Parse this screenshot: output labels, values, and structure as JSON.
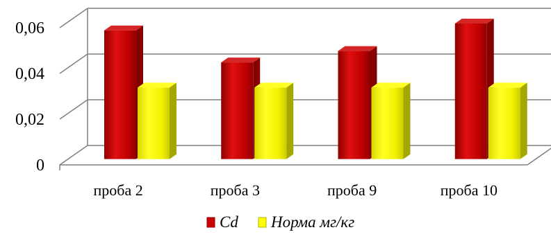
{
  "chart_data": {
    "type": "bar",
    "style": "3d-clustered",
    "categories": [
      "проба 2",
      "проба 3",
      "проба 9",
      "проба 10"
    ],
    "series": [
      {
        "name": "Cd",
        "values": [
          0.055,
          0.041,
          0.046,
          0.058
        ],
        "color": "#cc0000"
      },
      {
        "name": "Норма мг/кг",
        "values": [
          0.03,
          0.03,
          0.03,
          0.03
        ],
        "color": "#ffff00"
      }
    ],
    "y_ticks": [
      0,
      0.02,
      0.04,
      0.06
    ],
    "y_tick_labels": [
      "0",
      "0,02",
      "0,04",
      "0,06"
    ],
    "ylim": [
      0,
      0.06
    ],
    "grid": true,
    "legend_position": "bottom",
    "title": "",
    "xlabel": "",
    "ylabel": ""
  }
}
